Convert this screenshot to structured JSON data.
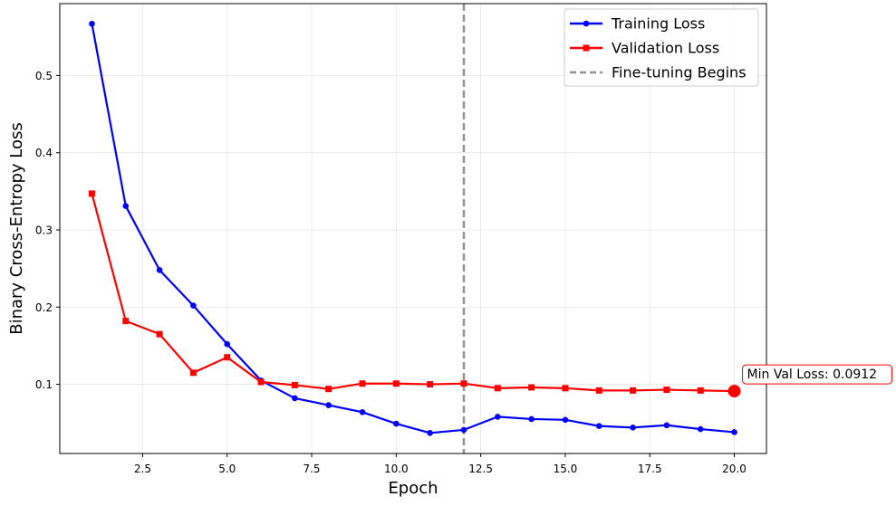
{
  "chart_data": {
    "type": "line",
    "title": "",
    "xlabel": "Epoch",
    "ylabel": "Binary Cross-Entropy Loss",
    "xlim": [
      0.05,
      20.95
    ],
    "ylim": [
      0.0104,
      0.5931
    ],
    "xticks": [
      2.5,
      5.0,
      7.5,
      10.0,
      12.5,
      15.0,
      17.5,
      20.0
    ],
    "xtick_labels": [
      "2.5",
      "5.0",
      "7.5",
      "10.0",
      "12.5",
      "15.0",
      "17.5",
      "20.0"
    ],
    "yticks": [
      0.1,
      0.2,
      0.3,
      0.4,
      0.5
    ],
    "ytick_labels": [
      "0.1",
      "0.2",
      "0.3",
      "0.4",
      "0.5"
    ],
    "grid": true,
    "legend_position": "top-right",
    "x": [
      1,
      2,
      3,
      4,
      5,
      6,
      7,
      8,
      9,
      10,
      11,
      12,
      13,
      14,
      15,
      16,
      17,
      18,
      19,
      20
    ],
    "series": [
      {
        "name": "Training Loss",
        "color": "#0000ff",
        "marker": "circle",
        "values": [
          0.567,
          0.331,
          0.248,
          0.202,
          0.152,
          0.105,
          0.082,
          0.073,
          0.064,
          0.049,
          0.037,
          0.041,
          0.058,
          0.055,
          0.054,
          0.046,
          0.044,
          0.047,
          0.042,
          0.038
        ]
      },
      {
        "name": "Validation Loss",
        "color": "#ff0000",
        "marker": "square",
        "values": [
          0.347,
          0.182,
          0.165,
          0.115,
          0.135,
          0.103,
          0.099,
          0.094,
          0.101,
          0.101,
          0.1,
          0.101,
          0.095,
          0.096,
          0.095,
          0.092,
          0.092,
          0.093,
          0.092,
          0.0912
        ]
      }
    ],
    "vline": {
      "x": 12,
      "label": "Fine-tuning Begins",
      "color": "#808080",
      "style": "dashed"
    },
    "highlight": {
      "x": 20,
      "y": 0.0912,
      "color": "#ff0000"
    },
    "annotation": {
      "text": "Min Val Loss: 0.0912",
      "x": 20,
      "y": 0.0912
    }
  }
}
